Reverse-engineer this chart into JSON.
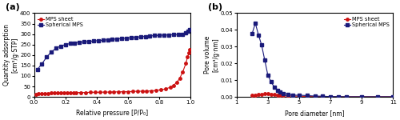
{
  "panel_a": {
    "title": "(a)",
    "xlabel": "Relative pressure [P/P₀]",
    "ylabel": "Quantity adsorption\n[cm³/g·STP]",
    "ylim": [
      0,
      400
    ],
    "xlim": [
      0,
      1.0
    ],
    "yticks": [
      0,
      50,
      100,
      150,
      200,
      250,
      300,
      350,
      400
    ],
    "xticks": [
      0,
      0.2,
      0.4,
      0.6,
      0.8,
      1.0
    ],
    "mps_sheet_x": [
      0.01,
      0.03,
      0.05,
      0.07,
      0.09,
      0.11,
      0.13,
      0.15,
      0.17,
      0.19,
      0.21,
      0.23,
      0.25,
      0.27,
      0.3,
      0.33,
      0.36,
      0.39,
      0.42,
      0.45,
      0.48,
      0.51,
      0.54,
      0.57,
      0.6,
      0.63,
      0.66,
      0.69,
      0.72,
      0.75,
      0.78,
      0.81,
      0.84,
      0.87,
      0.89,
      0.91,
      0.93,
      0.95,
      0.97,
      0.98,
      0.99,
      0.995
    ],
    "mps_sheet_y": [
      13,
      15,
      16,
      17,
      17,
      18,
      18,
      19,
      19,
      19,
      20,
      20,
      20,
      21,
      21,
      21,
      22,
      22,
      22,
      23,
      23,
      24,
      24,
      25,
      25,
      26,
      27,
      27,
      28,
      29,
      31,
      34,
      38,
      46,
      55,
      68,
      88,
      120,
      160,
      190,
      210,
      225
    ],
    "spherical_x": [
      0.02,
      0.05,
      0.08,
      0.11,
      0.14,
      0.17,
      0.2,
      0.23,
      0.26,
      0.29,
      0.32,
      0.35,
      0.38,
      0.41,
      0.44,
      0.47,
      0.5,
      0.53,
      0.56,
      0.59,
      0.62,
      0.65,
      0.68,
      0.71,
      0.74,
      0.77,
      0.8,
      0.83,
      0.86,
      0.89,
      0.92,
      0.95,
      0.97,
      0.985,
      0.995
    ],
    "spherical_y": [
      130,
      158,
      190,
      215,
      232,
      243,
      250,
      255,
      258,
      261,
      263,
      265,
      267,
      269,
      271,
      273,
      275,
      277,
      279,
      281,
      283,
      285,
      287,
      289,
      291,
      293,
      294,
      295,
      296,
      297,
      298,
      300,
      306,
      312,
      320
    ],
    "mps_sheet_color": "#cc1111",
    "spherical_color": "#1a1a7a",
    "legend_mps_sheet": "MPS sheet",
    "legend_spherical": "Spherical MPS"
  },
  "panel_b": {
    "title": "(b)",
    "xlabel": "Pore diameter [nm]",
    "ylabel": "Pore volume\n[cm³/g·nm]",
    "ylim": [
      0,
      0.05
    ],
    "xlim": [
      1,
      11
    ],
    "yticks": [
      0,
      0.01,
      0.02,
      0.03,
      0.04,
      0.05
    ],
    "xticks": [
      1,
      3,
      5,
      7,
      9,
      11
    ],
    "mps_sheet_x": [
      2.0,
      2.2,
      2.4,
      2.6,
      2.8,
      3.0,
      3.2,
      3.4,
      3.6,
      3.8,
      4.0,
      4.3,
      4.6,
      5.0,
      5.5,
      6.0,
      6.5,
      7.0,
      7.5,
      8.0,
      9.0,
      10.0,
      11.0
    ],
    "mps_sheet_y": [
      0.001,
      0.0012,
      0.0013,
      0.0015,
      0.0018,
      0.002,
      0.0016,
      0.0013,
      0.001,
      0.001,
      0.0008,
      0.0006,
      0.0005,
      0.0004,
      0.0003,
      0.0002,
      0.0002,
      0.0001,
      0.0001,
      0.0001,
      0.0001,
      0.0001,
      0.0001
    ],
    "spherical_x": [
      2.0,
      2.2,
      2.4,
      2.6,
      2.8,
      3.0,
      3.2,
      3.4,
      3.6,
      3.8,
      4.0,
      4.3,
      4.6,
      5.0,
      5.5,
      6.0,
      6.5,
      7.0,
      7.5,
      8.0,
      9.0,
      10.0,
      11.0
    ],
    "spherical_y": [
      0.038,
      0.044,
      0.037,
      0.031,
      0.022,
      0.013,
      0.009,
      0.006,
      0.004,
      0.003,
      0.002,
      0.0015,
      0.001,
      0.001,
      0.0008,
      0.0005,
      0.0004,
      0.0002,
      0.0002,
      0.0001,
      0.0001,
      0.0001,
      0.0001
    ],
    "mps_sheet_color": "#cc1111",
    "spherical_color": "#1a1a7a",
    "legend_mps_sheet": "MPS sheet",
    "legend_spherical": "Spherical MPS"
  }
}
